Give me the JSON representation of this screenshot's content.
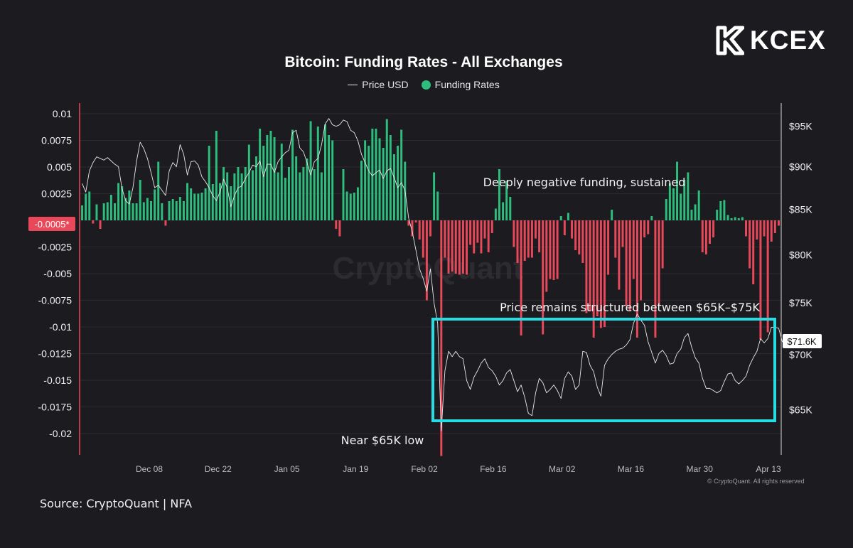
{
  "brand": {
    "name": "KCEX",
    "logo_icon": "kcex-logo-icon"
  },
  "source_note": "Source: CryptoQuant | NFA",
  "copyright": "© CryptoQuant. All rights reserved",
  "watermark": "CryptoQuant",
  "colors": {
    "background": "#1c1c20",
    "positive": "#2dbd7d",
    "negative": "#e8495a",
    "price_line": "#e8e8e8",
    "highlight_box": "#27dde3",
    "badge": "#e8495a"
  },
  "chart_data": {
    "type": "bar",
    "title": "Bitcoin: Funding Rates - All Exchanges",
    "legend": {
      "placement": "top-center",
      "entries": [
        "Price USD",
        "Funding Rates"
      ]
    },
    "x_tick_labels": [
      "Dec 08",
      "Dec 22",
      "Jan 05",
      "Jan 19",
      "Feb 02",
      "Feb 16",
      "Mar 02",
      "Mar 16",
      "Mar 30",
      "Apr 13"
    ],
    "left_axis": {
      "ticks": [
        0.01,
        0.0075,
        0.005,
        0.0025,
        -0.0025,
        -0.005,
        -0.0075,
        -0.01,
        -0.0125,
        -0.015,
        -0.0175,
        -0.02
      ],
      "tick_labels": [
        "0.01",
        "0.0075",
        "0.005",
        "0.0025",
        "-0.0025",
        "-0.005",
        "-0.0075",
        "-0.01",
        "-0.0125",
        "-0.015",
        "-0.0175",
        "-0.02"
      ],
      "current_label": "-0.0005*",
      "current_value": -0.0005,
      "range": [
        -0.022,
        0.011
      ]
    },
    "right_axis": {
      "log_scale": true,
      "ticks": [
        95000,
        90000,
        85000,
        80000,
        75000,
        70000,
        65000
      ],
      "tick_labels": [
        "$95K",
        "$90K",
        "$85K",
        "$80K",
        "$75K",
        "$70K",
        "$65K"
      ],
      "current_label": "$71.6K",
      "current_value": 71600,
      "range": [
        61200,
        98000
      ]
    },
    "grid": true,
    "annotations": [
      {
        "text": "Deeply negative funding, sustained"
      },
      {
        "text": "Price remains structured between $65K–$75K"
      },
      {
        "text": "Near $65K low"
      }
    ],
    "series": [
      {
        "name": "Funding Rates",
        "values": [
          0.0014,
          0.0025,
          0.0027,
          -0.0003,
          0.0015,
          -0.0008,
          0.0016,
          0.0017,
          0.0024,
          0.0016,
          0.0035,
          0.0032,
          0.0021,
          0.0028,
          0.0016,
          0.0016,
          0.0038,
          0.0017,
          0.0021,
          0.0018,
          0.0029,
          0.0055,
          0.0016,
          -0.0005,
          0.0018,
          0.002,
          0.0018,
          0.0022,
          0.0018,
          0.0035,
          0.003,
          0.0025,
          0.0025,
          0.0026,
          0.003,
          0.007,
          0.0034,
          0.0084,
          0.0035,
          0.005,
          0.0045,
          0.0032,
          0.0044,
          0.005,
          0.0044,
          0.005,
          0.0071,
          0.0047,
          0.006,
          0.0086,
          0.007,
          0.008,
          0.0084,
          0.0078,
          0.0045,
          0.0072,
          0.004,
          0.005,
          0.0085,
          0.006,
          0.0045,
          0.005,
          0.0058,
          0.0093,
          0.0048,
          0.0088,
          0.0045,
          0.009,
          0.008,
          0.0075,
          -0.0008,
          -0.0015,
          0.0048,
          0.0027,
          0.0025,
          0.0026,
          0.0031,
          0.0056,
          0.0075,
          0.007,
          0.0086,
          0.0086,
          0.0077,
          0.0068,
          0.0095,
          0.008,
          0.0062,
          0.007,
          0.0085,
          0.0055,
          -0.0005,
          -0.0015,
          -0.0002,
          -0.0018,
          -0.0035,
          -0.0075,
          -0.0015,
          0.0045,
          0.0027,
          -0.0221,
          -0.0035,
          -0.005,
          -0.0048,
          -0.005,
          -0.0051,
          -0.005,
          -0.0051,
          -0.0023,
          -0.0031,
          -0.0021,
          -0.0031,
          -0.0017,
          -0.003,
          -0.0012,
          0.0011,
          0.0048,
          0.0017,
          0.0037,
          0.0022,
          -0.0025,
          -0.004,
          -0.0108,
          -0.0038,
          -0.0035,
          -0.0035,
          -0.0017,
          -0.003,
          -0.0107,
          -0.0067,
          -0.0055,
          -0.0056,
          -0.0055,
          0.0004,
          -0.0014,
          0.0007,
          -0.0017,
          -0.0028,
          -0.0032,
          -0.004,
          -0.0087,
          -0.0085,
          -0.011,
          -0.009,
          -0.0101,
          -0.01,
          -0.0051,
          0.001,
          -0.0035,
          -0.0065,
          -0.0025,
          -0.008,
          -0.0085,
          -0.0055,
          -0.011,
          -0.0075,
          -0.0016,
          -0.0013,
          0.0004,
          -0.011,
          -0.008,
          -0.0045,
          0.002,
          0.0035,
          0.003,
          0.0055,
          0.0025,
          0.0038,
          0.0045,
          0.001,
          0.0015,
          0.0028,
          -0.003,
          -0.0032,
          -0.0022,
          -0.0016,
          0.001,
          0.0018,
          0.0019,
          0.0005,
          0.0002,
          0.0003,
          0.0002,
          0.0003,
          -0.0015,
          -0.0045,
          -0.006,
          -0.0018,
          -0.0112,
          -0.0015,
          -0.0105,
          -0.002,
          -0.0012,
          -0.0005
        ]
      },
      {
        "name": "Price USD",
        "values": [
          88000,
          87000,
          89500,
          90500,
          91200,
          91000,
          90800,
          91100,
          90700,
          90300,
          90000,
          87400,
          86000,
          85600,
          87500,
          90700,
          93000,
          92200,
          91000,
          89300,
          87500,
          87800,
          87200,
          86600,
          89500,
          90500,
          90000,
          92700,
          91500,
          89000,
          90600,
          90700,
          90200,
          88800,
          88200,
          87500,
          86600,
          86000,
          87000,
          88500,
          87500,
          85300,
          86600,
          87500,
          87700,
          88600,
          89300,
          90200,
          90000,
          90700,
          88800,
          90300,
          90300,
          89300,
          90600,
          91200,
          91700,
          92000,
          94200,
          94500,
          92300,
          91800,
          90500,
          89000,
          90600,
          91000,
          92700,
          95300,
          96000,
          95200,
          95000,
          95200,
          95800,
          95600,
          94500,
          94200,
          93200,
          91500,
          90500,
          89500,
          88900,
          89300,
          89600,
          88600,
          89500,
          89800,
          88700,
          87500,
          88100,
          87200,
          84000,
          82500,
          80500,
          78500,
          77500,
          76200,
          78500,
          75000,
          73000,
          63200,
          68500,
          70300,
          69800,
          70300,
          69800,
          69600,
          67600,
          66800,
          67900,
          68500,
          69200,
          69600,
          68800,
          68500,
          68000,
          67200,
          67600,
          68300,
          68600,
          67600,
          66600,
          67200,
          66100,
          64700,
          64500,
          66500,
          67800,
          67400,
          66500,
          66800,
          67200,
          66700,
          66000,
          67800,
          68400,
          68000,
          66800,
          67200,
          70300,
          70200,
          69000,
          68400,
          67000,
          66200,
          69000,
          69600,
          70000,
          70300,
          70500,
          70600,
          70900,
          71400,
          73000,
          73900,
          73300,
          72800,
          71200,
          70200,
          69200,
          70100,
          70400,
          69900,
          69100,
          69200,
          70100,
          70500,
          71600,
          72000,
          70700,
          69700,
          69200,
          67800,
          66900,
          66900,
          66700,
          66500,
          66700,
          67500,
          68200,
          68300,
          67600,
          67300,
          67600,
          68000,
          69000,
          69700,
          70300,
          71500,
          71100,
          71500,
          72600,
          72600,
          72500,
          71200,
          71300,
          71700
        ]
      }
    ]
  }
}
